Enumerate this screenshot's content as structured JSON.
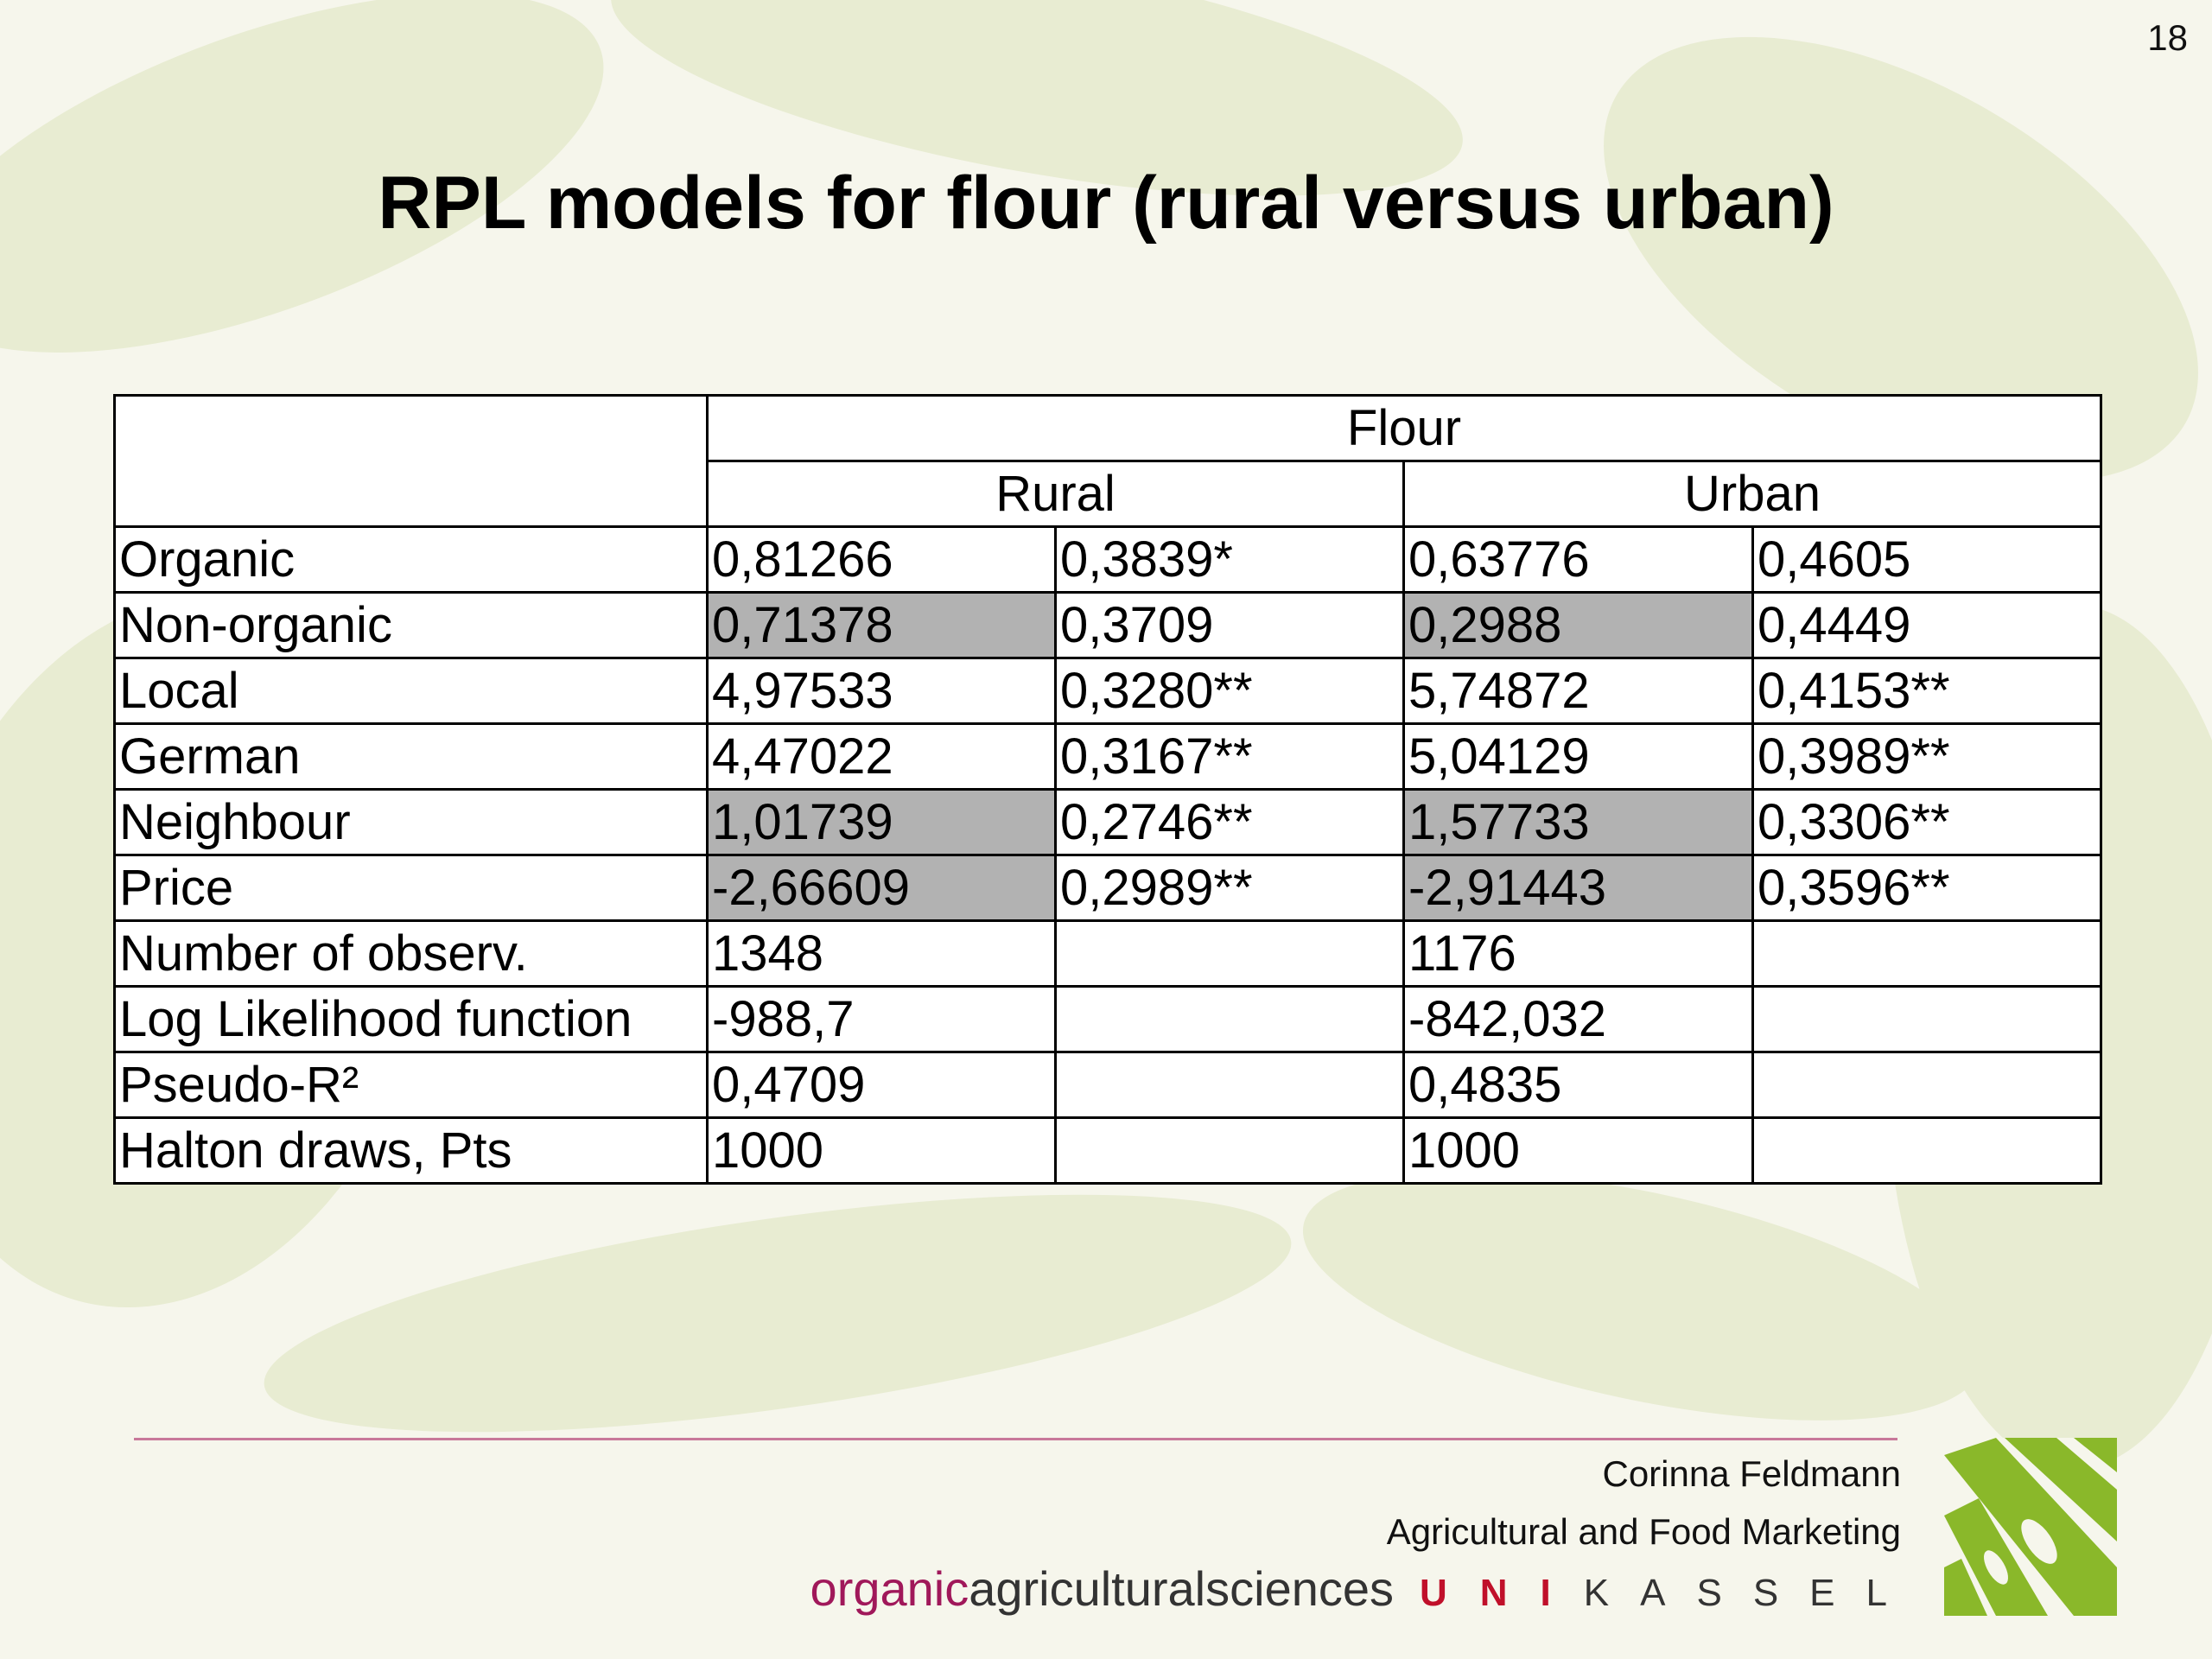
{
  "page_number": "18",
  "title": "RPL models for flour (rural versus urban)",
  "table": {
    "group": "Flour",
    "subgroups": [
      "Rural",
      "Urban"
    ],
    "rows": [
      [
        "Organic",
        "0,81266",
        "0,3839*",
        "0,63776",
        "0,4605"
      ],
      [
        "Non-organic",
        "0,71378",
        "0,3709",
        "0,2988",
        "0,4449"
      ],
      [
        "Local",
        "4,97533",
        "0,3280**",
        "5,74872",
        "0,4153**"
      ],
      [
        "German",
        "4,47022",
        "0,3167**",
        "5,04129",
        "0,3989**"
      ],
      [
        "Neighbour",
        "1,01739",
        "0,2746**",
        "1,57733",
        "0,3306**"
      ],
      [
        "Price",
        "-2,66609",
        "0,2989**",
        "-2,91443",
        "0,3596**"
      ],
      [
        "Number of observ.",
        "1348",
        "",
        "1176",
        ""
      ],
      [
        "Log Likelihood function",
        "-988,7",
        "",
        "-842,032",
        ""
      ],
      [
        "Pseudo-R²",
        "0,4709",
        "",
        "0,4835",
        ""
      ],
      [
        "Halton draws, Pts",
        "1000",
        "",
        "1000",
        ""
      ]
    ],
    "shaded_rows": [
      1,
      4,
      5
    ],
    "shaded_columns": [
      1,
      3
    ],
    "shade_color": "#b2b2b2"
  },
  "footer": {
    "author": "Corinna Feldmann",
    "department": "Agricultural and Food Marketing",
    "brand_highlight": "organic",
    "brand_rest": "agriculturalsciences",
    "uni": "UNI",
    "city": "KASSEL"
  }
}
